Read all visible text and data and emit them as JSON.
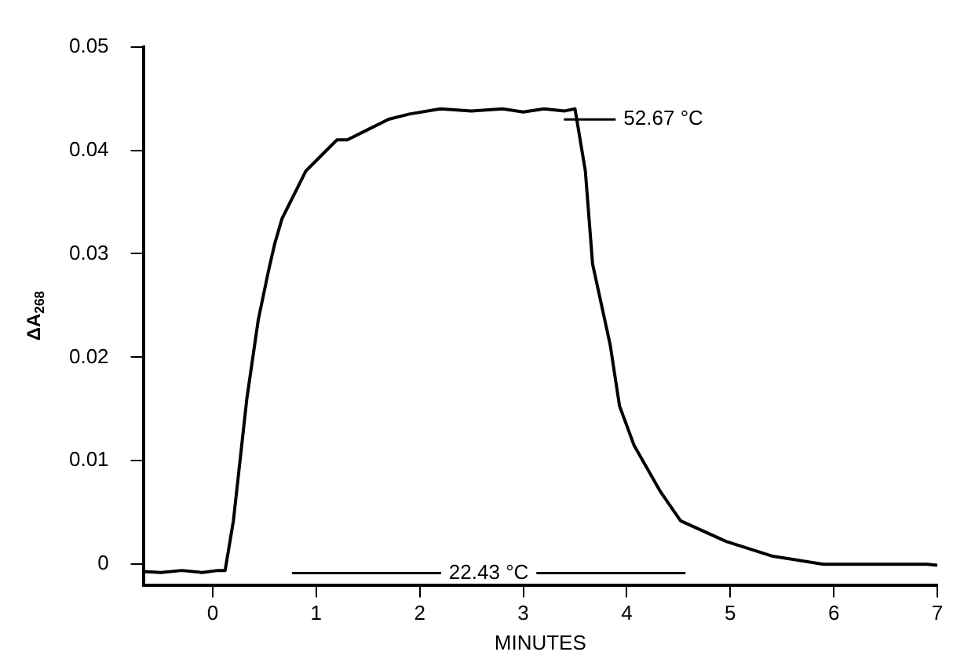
{
  "chart_data": {
    "type": "line",
    "xlabel": "MINUTES",
    "ylabel": "ΔA$_{268}$",
    "series": [
      {
        "color": "#000000",
        "x": [
          -0.67,
          -0.5,
          -0.3,
          -0.1,
          0.05,
          0.12,
          0.2,
          0.33,
          0.44,
          0.54,
          0.6,
          0.67,
          0.75,
          0.8,
          0.9,
          1.0,
          1.1,
          1.2,
          1.3,
          1.5,
          1.7,
          1.9,
          2.2,
          2.5,
          2.8,
          3.0,
          3.2,
          3.4,
          3.5,
          3.6,
          3.67,
          3.84,
          3.93,
          4.07,
          4.32,
          4.52,
          4.96,
          5.4,
          5.9,
          6.3,
          6.9,
          7.0
        ],
        "values": [
          -0.0007,
          -0.0008,
          -0.0006,
          -0.0008,
          -0.0006,
          -0.0006,
          0.0042,
          0.016,
          0.0236,
          0.0284,
          0.031,
          0.0334,
          0.035,
          0.036,
          0.038,
          0.039,
          0.04,
          0.041,
          0.041,
          0.042,
          0.043,
          0.0435,
          0.044,
          0.0438,
          0.044,
          0.0437,
          0.044,
          0.0438,
          0.044,
          0.038,
          0.029,
          0.0212,
          0.0153,
          0.0115,
          0.0071,
          0.0042,
          0.0022,
          0.0008,
          0.0,
          0.0,
          0.0,
          -0.0001
        ]
      }
    ],
    "xlim": [
      -0.67,
      7
    ],
    "xticks": [
      0,
      1,
      2,
      3,
      4,
      5,
      6,
      7
    ],
    "ylim": [
      -0.002,
      0.05
    ],
    "yticks": [
      0,
      {
        "value": 0.01,
        "label": "0.01"
      },
      {
        "value": 0.02,
        "label": "0.02"
      },
      {
        "value": 0.03,
        "label": "0.03"
      },
      {
        "value": 0.04,
        "label": "0.04"
      },
      {
        "value": 0.05,
        "label": "0.05"
      }
    ],
    "grid": false,
    "legend": false,
    "marker": "none",
    "line_style": "solid",
    "annotations": [
      "52.67 °C",
      "22.43 °C"
    ]
  }
}
